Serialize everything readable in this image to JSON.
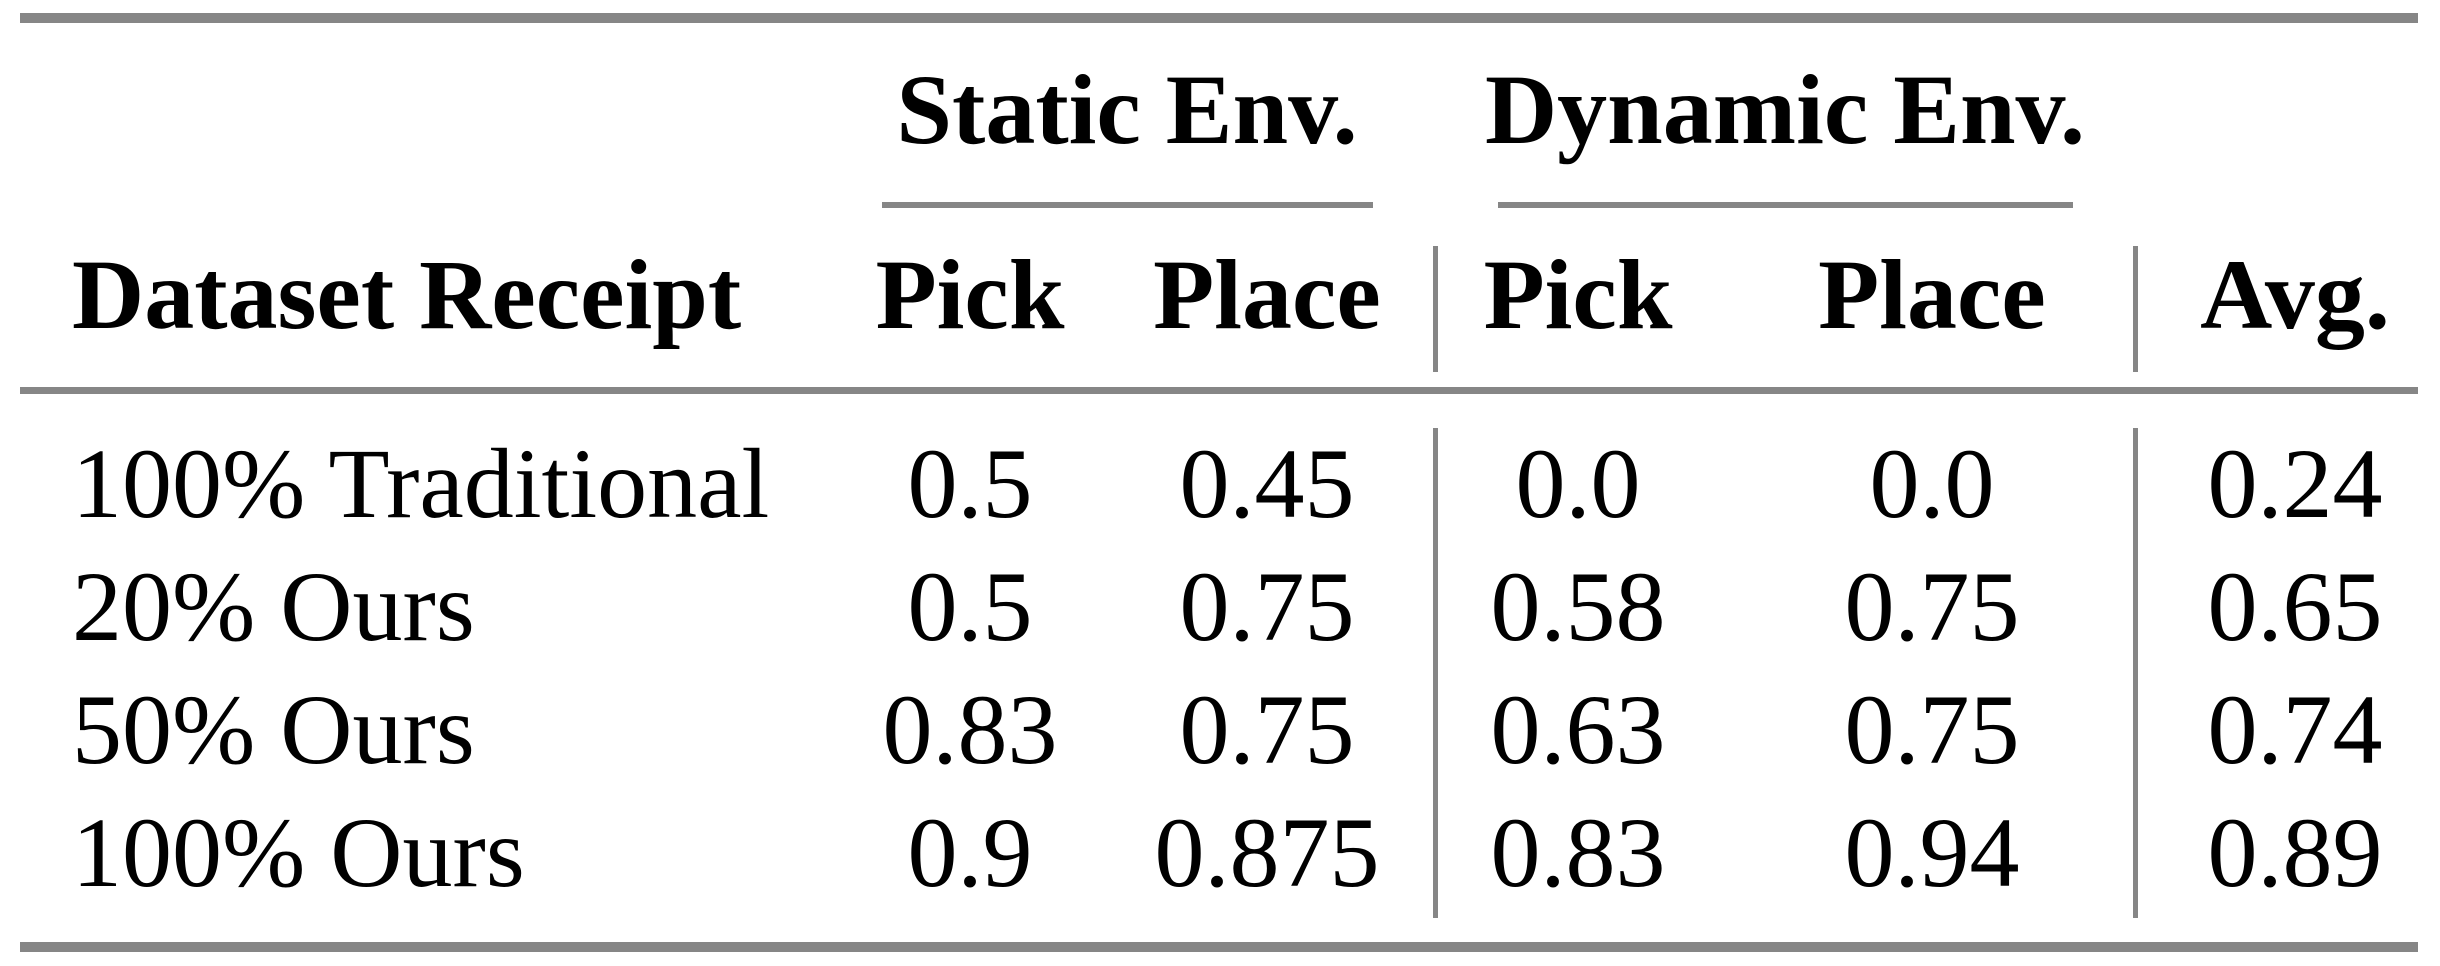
{
  "table": {
    "group_headers": [
      {
        "label": "Static Env."
      },
      {
        "label": "Dynamic Env."
      }
    ],
    "column_headers": {
      "dataset": "Dataset Receipt",
      "static_pick": "Pick",
      "static_place": "Place",
      "dynamic_pick": "Pick",
      "dynamic_place": "Place",
      "avg": "Avg."
    },
    "rows": [
      {
        "cells": [
          "100% Traditional",
          "0.5",
          "0.45",
          "0.0",
          "0.0",
          "0.24"
        ]
      },
      {
        "cells": [
          "20% Ours",
          "0.5",
          "0.75",
          "0.58",
          "0.75",
          "0.65"
        ]
      },
      {
        "cells": [
          "50% Ours",
          "0.83",
          "0.75",
          "0.63",
          "0.75",
          "0.74"
        ]
      },
      {
        "cells": [
          "100% Ours",
          "0.9",
          "0.875",
          "0.83",
          "0.94",
          "0.89"
        ]
      }
    ],
    "colors": {
      "rule": "#868686",
      "text": "#000000",
      "background": "#ffffff"
    }
  }
}
